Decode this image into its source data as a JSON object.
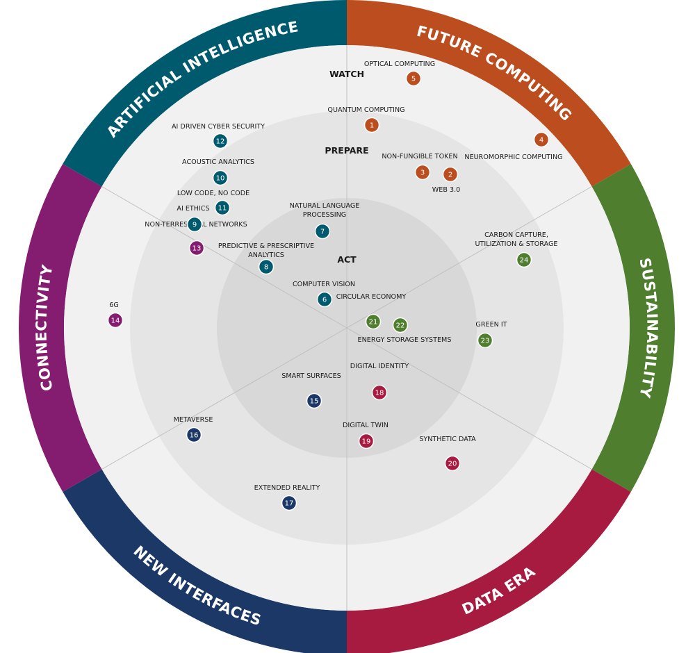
{
  "ring_names": [
    "ACT",
    "PREPARE",
    "WATCH"
  ],
  "sectors": [
    {
      "name": "FUTURE COMPUTING",
      "color": "#bb4d1f"
    },
    {
      "name": "SUSTAINABILITY",
      "color": "#4f7e2f"
    },
    {
      "name": "DATA ERA",
      "color": "#a81b41"
    },
    {
      "name": "NEW INTERFACES",
      "color": "#1b3866"
    },
    {
      "name": "CONNECTIVITY",
      "color": "#841c70"
    },
    {
      "name": "ARTIFICIAL INTELLIGENCE",
      "color": "#005a6e"
    }
  ],
  "items": [
    {
      "num": "1",
      "label": [
        "QUANTUM COMPUTING"
      ],
      "sector": 0
    },
    {
      "num": "2",
      "label": [
        "WEB 3.0"
      ],
      "sector": 0
    },
    {
      "num": "3",
      "label": [
        "NON-FUNGIBLE TOKEN"
      ],
      "sector": 0
    },
    {
      "num": "4",
      "label": [
        "NEUROMORPHIC COMPUTING"
      ],
      "sector": 0
    },
    {
      "num": "5",
      "label": [
        "OPTICAL COMPUTING"
      ],
      "sector": 0
    },
    {
      "num": "6",
      "label": [
        "COMPUTER VISION"
      ],
      "sector": 5
    },
    {
      "num": "7",
      "label": [
        "NATURAL LANGUAGE",
        "PROCESSING"
      ],
      "sector": 5
    },
    {
      "num": "8",
      "label": [
        "PREDICTIVE & PRESCRIPTIVE",
        "ANALYTICS"
      ],
      "sector": 5
    },
    {
      "num": "9",
      "label": [
        "AI ETHICS"
      ],
      "sector": 5
    },
    {
      "num": "10",
      "label": [
        "ACOUSTIC ANALYTICS"
      ],
      "sector": 5
    },
    {
      "num": "11",
      "label": [
        "LOW CODE, NO CODE"
      ],
      "sector": 5
    },
    {
      "num": "12",
      "label": [
        "AI DRIVEN CYBER SECURITY"
      ],
      "sector": 5
    },
    {
      "num": "13",
      "label": [
        "NON-TERRESTRIAL NETWORKS"
      ],
      "sector": 4
    },
    {
      "num": "14",
      "label": [
        "6G"
      ],
      "sector": 4
    },
    {
      "num": "15",
      "label": [
        "SMART SURFACES"
      ],
      "sector": 3
    },
    {
      "num": "16",
      "label": [
        "METAVERSE"
      ],
      "sector": 3
    },
    {
      "num": "17",
      "label": [
        "EXTENDED REALITY"
      ],
      "sector": 3
    },
    {
      "num": "18",
      "label": [
        "DIGITAL IDENTITY"
      ],
      "sector": 2
    },
    {
      "num": "19",
      "label": [
        "DIGITAL TWIN"
      ],
      "sector": 2
    },
    {
      "num": "20",
      "label": [
        "SYNTHETIC DATA"
      ],
      "sector": 2
    },
    {
      "num": "21",
      "label": [
        "CIRCULAR ECONOMY"
      ],
      "sector": 1
    },
    {
      "num": "22",
      "label": [
        "ENERGY STORAGE SYSTEMS"
      ],
      "sector": 1
    },
    {
      "num": "23",
      "label": [
        "GREEN IT"
      ],
      "sector": 1
    },
    {
      "num": "24",
      "label": [
        "CARBON CAPTURE,",
        "UTILIZATION & STORAGE"
      ],
      "sector": 1
    }
  ]
}
